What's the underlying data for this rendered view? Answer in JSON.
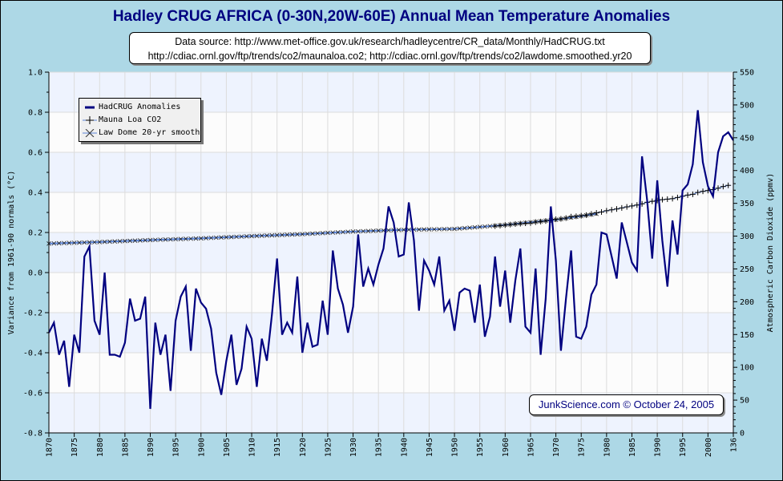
{
  "chart_data": {
    "type": "line",
    "title": "Hadley CRUG AFRICA (0-30N,20W-60E) Annual Mean Temperature Anomalies",
    "subtitle_lines": [
      "Data source: http://www.met-office.gov.uk/research/hadleycentre/CR_data/Monthly/HadCRUG.txt",
      "http://cdiac.ornl.gov/ftp/trends/co2/maunaloa.co2; http://cdiac.ornl.gov/ftp/trends/co2/lawdome.smoothed.yr20"
    ],
    "xlabel": "",
    "ylabel": "Variance from 1961-90 normals (°C)",
    "y2label": "Atmospheric Carbon Dioxide (ppmv)",
    "xlim": [
      1870,
      2005
    ],
    "ylim": [
      -0.8,
      1.0
    ],
    "y2lim": [
      0,
      550
    ],
    "x_tick_labels": [
      "1870",
      "1875",
      "1880",
      "1885",
      "1890",
      "1895",
      "1900",
      "1905",
      "1910",
      "1915",
      "1920",
      "1925",
      "1930",
      "1935",
      "1940",
      "1945",
      "1950",
      "1955",
      "1960",
      "1965",
      "1970",
      "1975",
      "1980",
      "1985",
      "1990",
      "1995",
      "2000",
      "136"
    ],
    "y_tick_labels": [
      "1.0",
      "0.8",
      "0.6",
      "0.4",
      "0.2",
      "0.0",
      "-0.2",
      "-0.4",
      "-0.6",
      "-0.8"
    ],
    "y2_tick_labels": [
      "550",
      "500",
      "450",
      "400",
      "350",
      "300",
      "250",
      "200",
      "150",
      "100",
      "50",
      "0"
    ],
    "grid": true,
    "legend_position": "top-left",
    "legend": [
      "HadCRUG Anomalies",
      "Mauna Loa CO2",
      "Law Dome 20-yr smooth"
    ],
    "series": [
      {
        "name": "HadCRUG Anomalies",
        "axis": "left",
        "color": "#000080",
        "x_start": 1870,
        "values": [
          -0.3,
          -0.25,
          -0.41,
          -0.34,
          -0.57,
          -0.31,
          -0.4,
          0.08,
          0.13,
          -0.24,
          -0.31,
          0.0,
          -0.41,
          -0.41,
          -0.42,
          -0.35,
          -0.13,
          -0.24,
          -0.23,
          -0.12,
          -0.68,
          -0.25,
          -0.41,
          -0.31,
          -0.59,
          -0.24,
          -0.12,
          -0.07,
          -0.39,
          -0.08,
          -0.15,
          -0.18,
          -0.28,
          -0.5,
          -0.61,
          -0.44,
          -0.31,
          -0.56,
          -0.48,
          -0.27,
          -0.33,
          -0.57,
          -0.33,
          -0.44,
          -0.21,
          0.07,
          -0.31,
          -0.25,
          -0.3,
          -0.02,
          -0.4,
          -0.25,
          -0.37,
          -0.36,
          -0.14,
          -0.31,
          0.11,
          -0.08,
          -0.16,
          -0.3,
          -0.17,
          0.19,
          -0.07,
          0.02,
          -0.06,
          0.04,
          0.12,
          0.33,
          0.25,
          0.08,
          0.09,
          0.35,
          0.16,
          -0.19,
          0.06,
          0.01,
          -0.06,
          0.08,
          -0.19,
          -0.14,
          -0.29,
          -0.1,
          -0.08,
          -0.09,
          -0.25,
          -0.06,
          -0.32,
          -0.22,
          0.08,
          -0.17,
          0.01,
          -0.25,
          -0.04,
          0.12,
          -0.27,
          -0.3,
          0.02,
          -0.41,
          -0.13,
          0.33,
          0.06,
          -0.39,
          -0.13,
          0.11,
          -0.32,
          -0.33,
          -0.27,
          -0.11,
          -0.06,
          0.2,
          0.19,
          0.08,
          -0.03,
          0.25,
          0.15,
          0.05,
          0.01,
          0.58,
          0.36,
          0.07,
          0.46,
          0.16,
          -0.07,
          0.26,
          0.09,
          0.41,
          0.44,
          0.54,
          0.81,
          0.55,
          0.43,
          0.38,
          0.6,
          0.68,
          0.7,
          0.66
        ]
      },
      {
        "name": "Mauna Loa CO2",
        "axis": "right",
        "color": "#000000",
        "marker": "plus",
        "x": [
          1958,
          1959,
          1960,
          1961,
          1962,
          1963,
          1964,
          1965,
          1966,
          1967,
          1968,
          1969,
          1970,
          1971,
          1972,
          1973,
          1974,
          1975,
          1976,
          1977,
          1978,
          1979,
          1980,
          1981,
          1982,
          1983,
          1984,
          1985,
          1986,
          1987,
          1988,
          1989,
          1990,
          1991,
          1992,
          1993,
          1994,
          1995,
          1996,
          1997,
          1998,
          1999,
          2000,
          2001,
          2002,
          2003,
          2004
        ],
        "values": [
          315.3,
          316.0,
          316.9,
          317.6,
          318.5,
          319.0,
          319.6,
          320.0,
          321.4,
          322.2,
          323.1,
          324.6,
          325.7,
          326.3,
          327.5,
          329.7,
          330.2,
          331.1,
          332.0,
          333.8,
          335.4,
          336.8,
          338.7,
          340.1,
          341.4,
          343.0,
          344.6,
          346.0,
          347.4,
          349.2,
          351.6,
          353.1,
          354.4,
          355.6,
          356.4,
          357.1,
          358.9,
          360.9,
          362.6,
          363.8,
          366.6,
          368.3,
          369.5,
          371.0,
          373.1,
          375.6,
          377.4
        ]
      },
      {
        "name": "Law Dome 20-yr smooth",
        "axis": "right",
        "color": "#5b84d6",
        "marker": "x",
        "x_start": 1870,
        "x_end": 1978,
        "values_by_decade": {
          "1870": 288.7,
          "1880": 291.0,
          "1890": 294.0,
          "1900": 296.6,
          "1910": 300.0,
          "1920": 303.0,
          "1930": 307.0,
          "1940": 309.7,
          "1950": 311.0,
          "1960": 317.0,
          "1970": 325.0,
          "1978": 334.0
        }
      }
    ]
  },
  "credit": "JunkScience.com © October 24, 2005"
}
